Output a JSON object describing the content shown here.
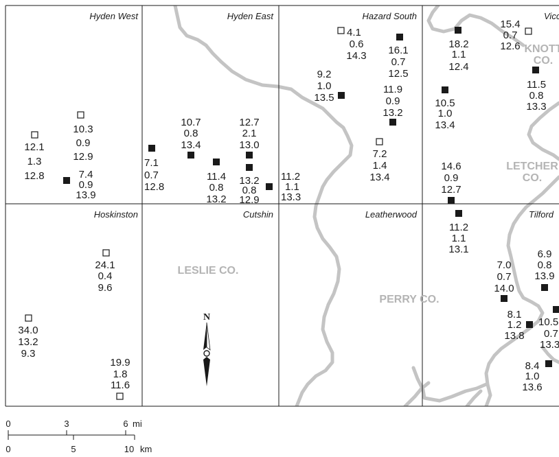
{
  "quadrangles": [
    "Hyden West",
    "Hyden East",
    "Hazard South",
    "Vicco",
    "Hoskinston",
    "Cutshin",
    "Leatherwood",
    "Tilford"
  ],
  "counties": [
    {
      "lines": [
        "LESLIE CO."
      ]
    },
    {
      "lines": [
        "PERRY CO."
      ]
    },
    {
      "lines": [
        "KNOTT",
        "CO."
      ]
    },
    {
      "lines": [
        "LETCHER",
        "CO."
      ]
    }
  ],
  "north_label": "N",
  "legend_symbols": {
    "open_square": "open sample",
    "filled_square": "filled sample"
  },
  "samples": [
    {
      "symbol": "open",
      "values": [
        "12.1",
        "1.3",
        "12.8"
      ]
    },
    {
      "symbol": "open",
      "values": [
        "10.3",
        "0.9",
        "12.9"
      ]
    },
    {
      "symbol": "filled",
      "values": [
        "7.4",
        "0.9",
        "13.9"
      ]
    },
    {
      "symbol": "filled",
      "values": [
        "7.1",
        "0.7",
        "12.8"
      ]
    },
    {
      "symbol": "filled",
      "values": [
        "10.7",
        "0.8",
        "13.4"
      ]
    },
    {
      "symbol": "filled",
      "values": [
        "11.4",
        "0.8",
        "13.2"
      ]
    },
    {
      "symbol": "filled",
      "values": [
        "12.7",
        "2.1",
        "13.0"
      ]
    },
    {
      "symbol": "filled",
      "values": [
        "13.2",
        "0.8",
        "12.9"
      ]
    },
    {
      "symbol": "filled",
      "values": [
        "11.2",
        "1.1",
        "13.3"
      ]
    },
    {
      "symbol": "open",
      "values": [
        "4.1",
        "0.6",
        "14.3"
      ]
    },
    {
      "symbol": "filled",
      "values": [
        "16.1",
        "0.7",
        "12.5"
      ]
    },
    {
      "symbol": "filled",
      "values": [
        "9.2",
        "1.0",
        "13.5"
      ]
    },
    {
      "symbol": "filled",
      "values": [
        "11.9",
        "0.9",
        "13.2"
      ]
    },
    {
      "symbol": "open",
      "values": [
        "7.2",
        "1.4",
        "13.4"
      ]
    },
    {
      "symbol": "filled",
      "values": [
        "18.2",
        "1.1",
        "12.4"
      ]
    },
    {
      "symbol": "open",
      "values": [
        "15.4",
        "0.7",
        "12.6"
      ]
    },
    {
      "symbol": "filled",
      "values": [
        "11.5",
        "0.8",
        "13.3"
      ]
    },
    {
      "symbol": "filled",
      "values": [
        "10.5",
        "1.0",
        "13.4"
      ]
    },
    {
      "symbol": "filled",
      "values": [
        "14.6",
        "0.9",
        "12.7"
      ]
    },
    {
      "symbol": "filled",
      "values": [
        "11.2",
        "1.1",
        "13.1"
      ]
    },
    {
      "symbol": "open",
      "values": [
        "24.1",
        "0.4",
        "9.6"
      ]
    },
    {
      "symbol": "open",
      "values": [
        "34.0",
        "13.2",
        "9.3"
      ]
    },
    {
      "symbol": "open",
      "values": [
        "19.9",
        "1.8",
        "11.6"
      ]
    },
    {
      "symbol": "filled",
      "values": [
        "6.9",
        "0.8",
        "13.9"
      ]
    },
    {
      "symbol": "filled",
      "values": [
        "7.0",
        "0.7",
        "14.0"
      ]
    },
    {
      "symbol": "filled",
      "values": [
        "8.1",
        "1.2",
        "13.8"
      ]
    },
    {
      "symbol": "filled",
      "values": [
        "10.5",
        "0.7",
        "13.3"
      ]
    },
    {
      "symbol": "filled",
      "values": [
        "8.4",
        "1.0",
        "13.6"
      ]
    }
  ],
  "scale_bar": {
    "miles": {
      "ticks": [
        "0",
        "3",
        "6"
      ],
      "unit": "mi"
    },
    "km": {
      "ticks": [
        "0",
        "5",
        "10"
      ],
      "unit": "km"
    }
  }
}
